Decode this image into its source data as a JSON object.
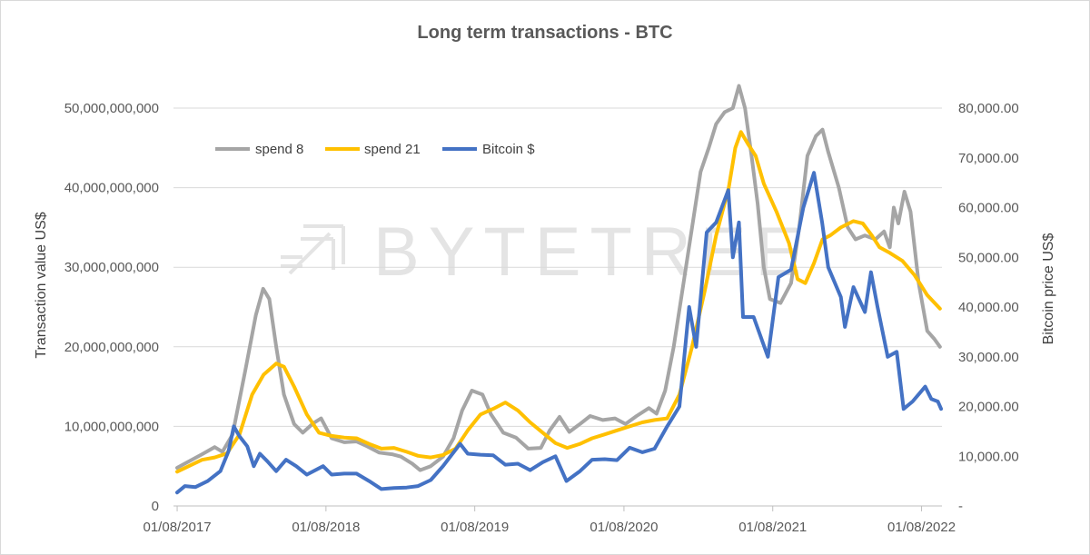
{
  "chart_data": {
    "type": "line",
    "title": "Long term transactions - BTC",
    "ylabel": "Transaction value US$",
    "y2label": "Bitcoin price US$",
    "watermark": "BYTETREE",
    "x_axis_start": "2017-07-23",
    "x_axis_end": "2022-09-20",
    "ylim": [
      0,
      50000000000
    ],
    "y2lim": [
      0,
      80000
    ],
    "x_tick_labels": [
      "01/08/2017",
      "01/08/2018",
      "01/08/2019",
      "01/08/2020",
      "01/08/2021",
      "01/08/2022"
    ],
    "x_tick_dates": [
      "2017-08-01",
      "2018-08-01",
      "2019-08-01",
      "2020-08-01",
      "2021-08-01",
      "2022-08-01"
    ],
    "y_tick_labels": [
      "0",
      "10,000,000,000",
      "20,000,000,000",
      "30,000,000,000",
      "40,000,000,000",
      "50,000,000,000"
    ],
    "y_ticks": [
      0,
      10000000000,
      20000000000,
      30000000000,
      40000000000,
      50000000000
    ],
    "y2_tick_labels": [
      "-",
      "10,000.00",
      "20,000.00",
      "30,000.00",
      "40,000.00",
      "50,000.00",
      "60,000.00",
      "70,000.00",
      "80,000.00"
    ],
    "y2_ticks": [
      0,
      10000,
      20000,
      30000,
      40000,
      50000,
      60000,
      70000,
      80000
    ],
    "grid": true,
    "legend_position": "top-left",
    "legend": [
      "spend 8",
      "spend 21",
      "Bitcoin $"
    ],
    "series": [
      {
        "name": "spend 8",
        "color": "#a5a5a5",
        "axis": "left",
        "points": [
          [
            "2017-08-01",
            4800000000
          ],
          [
            "2017-10-01",
            6500000000
          ],
          [
            "2017-11-01",
            7400000000
          ],
          [
            "2017-11-20",
            6800000000
          ],
          [
            "2017-12-15",
            9000000000
          ],
          [
            "2018-01-15",
            17000000000
          ],
          [
            "2018-02-10",
            24000000000
          ],
          [
            "2018-02-28",
            27300000000
          ],
          [
            "2018-03-15",
            26000000000
          ],
          [
            "2018-04-01",
            20000000000
          ],
          [
            "2018-04-20",
            14000000000
          ],
          [
            "2018-05-15",
            10300000000
          ],
          [
            "2018-06-05",
            9200000000
          ],
          [
            "2018-07-01",
            10400000000
          ],
          [
            "2018-07-20",
            11000000000
          ],
          [
            "2018-08-15",
            8500000000
          ],
          [
            "2018-09-15",
            8000000000
          ],
          [
            "2018-10-15",
            8100000000
          ],
          [
            "2018-11-10",
            7500000000
          ],
          [
            "2018-12-10",
            6700000000
          ],
          [
            "2019-01-10",
            6500000000
          ],
          [
            "2019-02-01",
            6200000000
          ],
          [
            "2019-03-01",
            5300000000
          ],
          [
            "2019-03-20",
            4500000000
          ],
          [
            "2019-04-15",
            5000000000
          ],
          [
            "2019-05-15",
            6200000000
          ],
          [
            "2019-06-10",
            8500000000
          ],
          [
            "2019-07-01",
            12000000000
          ],
          [
            "2019-07-25",
            14500000000
          ],
          [
            "2019-08-20",
            14000000000
          ],
          [
            "2019-09-10",
            11500000000
          ],
          [
            "2019-10-10",
            9200000000
          ],
          [
            "2019-11-10",
            8600000000
          ],
          [
            "2019-12-10",
            7200000000
          ],
          [
            "2020-01-10",
            7300000000
          ],
          [
            "2020-02-01",
            9500000000
          ],
          [
            "2020-02-25",
            11200000000
          ],
          [
            "2020-03-20",
            9300000000
          ],
          [
            "2020-04-15",
            10300000000
          ],
          [
            "2020-05-10",
            11300000000
          ],
          [
            "2020-06-10",
            10800000000
          ],
          [
            "2020-07-10",
            11000000000
          ],
          [
            "2020-08-05",
            10300000000
          ],
          [
            "2020-09-01",
            11300000000
          ],
          [
            "2020-10-01",
            12300000000
          ],
          [
            "2020-10-20",
            11600000000
          ],
          [
            "2020-11-10",
            14500000000
          ],
          [
            "2020-12-01",
            20000000000
          ],
          [
            "2020-12-25",
            28000000000
          ],
          [
            "2021-01-15",
            35000000000
          ],
          [
            "2021-02-05",
            42000000000
          ],
          [
            "2021-02-25",
            45000000000
          ],
          [
            "2021-03-15",
            48000000000
          ],
          [
            "2021-04-05",
            49500000000
          ],
          [
            "2021-04-25",
            50000000000
          ],
          [
            "2021-05-10",
            52800000000
          ],
          [
            "2021-05-25",
            50000000000
          ],
          [
            "2021-06-10",
            44000000000
          ],
          [
            "2021-06-25",
            38000000000
          ],
          [
            "2021-07-10",
            30000000000
          ],
          [
            "2021-07-25",
            26000000000
          ],
          [
            "2021-08-20",
            25500000000
          ],
          [
            "2021-09-15",
            28000000000
          ],
          [
            "2021-10-05",
            35000000000
          ],
          [
            "2021-10-25",
            44000000000
          ],
          [
            "2021-11-15",
            46500000000
          ],
          [
            "2021-12-01",
            47300000000
          ],
          [
            "2021-12-15",
            44500000000
          ],
          [
            "2022-01-10",
            40000000000
          ],
          [
            "2022-02-01",
            35000000000
          ],
          [
            "2022-02-20",
            33500000000
          ],
          [
            "2022-03-15",
            34000000000
          ],
          [
            "2022-04-10",
            33500000000
          ],
          [
            "2022-05-01",
            34500000000
          ],
          [
            "2022-05-15",
            32500000000
          ],
          [
            "2022-05-25",
            37500000000
          ],
          [
            "2022-06-05",
            35500000000
          ],
          [
            "2022-06-20",
            39500000000
          ],
          [
            "2022-07-05",
            37000000000
          ],
          [
            "2022-07-25",
            28000000000
          ],
          [
            "2022-08-15",
            22000000000
          ],
          [
            "2022-09-01",
            21000000000
          ],
          [
            "2022-09-15",
            20000000000
          ]
        ]
      },
      {
        "name": "spend 21",
        "color": "#ffc000",
        "axis": "left",
        "points": [
          [
            "2017-08-01",
            4300000000
          ],
          [
            "2017-10-01",
            5800000000
          ],
          [
            "2017-11-01",
            6100000000
          ],
          [
            "2017-12-01",
            6600000000
          ],
          [
            "2018-01-01",
            9000000000
          ],
          [
            "2018-02-01",
            14000000000
          ],
          [
            "2018-03-01",
            16500000000
          ],
          [
            "2018-04-01",
            17900000000
          ],
          [
            "2018-04-20",
            17500000000
          ],
          [
            "2018-05-15",
            15000000000
          ],
          [
            "2018-06-15",
            11500000000
          ],
          [
            "2018-07-15",
            9200000000
          ],
          [
            "2018-08-15",
            8800000000
          ],
          [
            "2018-09-15",
            8600000000
          ],
          [
            "2018-10-15",
            8500000000
          ],
          [
            "2018-11-15",
            7800000000
          ],
          [
            "2018-12-15",
            7200000000
          ],
          [
            "2019-01-15",
            7300000000
          ],
          [
            "2019-02-15",
            6800000000
          ],
          [
            "2019-03-15",
            6300000000
          ],
          [
            "2019-04-15",
            6100000000
          ],
          [
            "2019-05-15",
            6400000000
          ],
          [
            "2019-06-15",
            7200000000
          ],
          [
            "2019-07-15",
            9500000000
          ],
          [
            "2019-08-15",
            11500000000
          ],
          [
            "2019-09-15",
            12200000000
          ],
          [
            "2019-10-15",
            13000000000
          ],
          [
            "2019-11-15",
            12000000000
          ],
          [
            "2019-12-15",
            10500000000
          ],
          [
            "2020-01-15",
            9200000000
          ],
          [
            "2020-02-15",
            7900000000
          ],
          [
            "2020-03-15",
            7300000000
          ],
          [
            "2020-04-15",
            7800000000
          ],
          [
            "2020-05-15",
            8500000000
          ],
          [
            "2020-06-15",
            9000000000
          ],
          [
            "2020-07-15",
            9500000000
          ],
          [
            "2020-08-15",
            10000000000
          ],
          [
            "2020-09-15",
            10500000000
          ],
          [
            "2020-10-15",
            10800000000
          ],
          [
            "2020-11-15",
            11000000000
          ],
          [
            "2020-12-15",
            14000000000
          ],
          [
            "2021-01-15",
            20000000000
          ],
          [
            "2021-02-15",
            27000000000
          ],
          [
            "2021-03-15",
            34000000000
          ],
          [
            "2021-04-15",
            40000000000
          ],
          [
            "2021-05-01",
            45000000000
          ],
          [
            "2021-05-15",
            47000000000
          ],
          [
            "2021-06-01",
            45500000000
          ],
          [
            "2021-06-20",
            44000000000
          ],
          [
            "2021-07-10",
            40500000000
          ],
          [
            "2021-08-10",
            37000000000
          ],
          [
            "2021-09-10",
            33000000000
          ],
          [
            "2021-10-01",
            28500000000
          ],
          [
            "2021-10-20",
            28000000000
          ],
          [
            "2021-11-10",
            30500000000
          ],
          [
            "2021-12-01",
            33500000000
          ],
          [
            "2021-12-20",
            34000000000
          ],
          [
            "2022-01-15",
            35000000000
          ],
          [
            "2022-02-15",
            35800000000
          ],
          [
            "2022-03-10",
            35500000000
          ],
          [
            "2022-04-01",
            34000000000
          ],
          [
            "2022-04-20",
            32500000000
          ],
          [
            "2022-05-15",
            31800000000
          ],
          [
            "2022-06-15",
            30800000000
          ],
          [
            "2022-07-15",
            29000000000
          ],
          [
            "2022-08-15",
            26500000000
          ],
          [
            "2022-09-15",
            24800000000
          ]
        ]
      },
      {
        "name": "Bitcoin $",
        "color": "#4472c4",
        "axis": "right",
        "points": [
          [
            "2017-08-01",
            2700
          ],
          [
            "2017-08-20",
            4000
          ],
          [
            "2017-09-15",
            3800
          ],
          [
            "2017-10-15",
            5000
          ],
          [
            "2017-11-15",
            7000
          ],
          [
            "2017-12-05",
            11000
          ],
          [
            "2017-12-18",
            16000
          ],
          [
            "2018-01-01",
            14000
          ],
          [
            "2018-01-20",
            12000
          ],
          [
            "2018-02-05",
            8000
          ],
          [
            "2018-02-20",
            10500
          ],
          [
            "2018-03-10",
            9000
          ],
          [
            "2018-04-01",
            7000
          ],
          [
            "2018-04-25",
            9300
          ],
          [
            "2018-05-20",
            8000
          ],
          [
            "2018-06-15",
            6300
          ],
          [
            "2018-07-25",
            8000
          ],
          [
            "2018-08-15",
            6300
          ],
          [
            "2018-09-15",
            6500
          ],
          [
            "2018-10-15",
            6500
          ],
          [
            "2018-11-15",
            5000
          ],
          [
            "2018-12-15",
            3400
          ],
          [
            "2019-01-15",
            3600
          ],
          [
            "2019-02-15",
            3700
          ],
          [
            "2019-03-15",
            4000
          ],
          [
            "2019-04-15",
            5200
          ],
          [
            "2019-05-15",
            8000
          ],
          [
            "2019-06-26",
            12500
          ],
          [
            "2019-07-15",
            10500
          ],
          [
            "2019-08-15",
            10300
          ],
          [
            "2019-09-15",
            10200
          ],
          [
            "2019-10-15",
            8300
          ],
          [
            "2019-11-15",
            8500
          ],
          [
            "2019-12-15",
            7200
          ],
          [
            "2020-01-15",
            8800
          ],
          [
            "2020-02-15",
            10000
          ],
          [
            "2020-03-13",
            5000
          ],
          [
            "2020-04-15",
            7000
          ],
          [
            "2020-05-15",
            9300
          ],
          [
            "2020-06-15",
            9400
          ],
          [
            "2020-07-15",
            9200
          ],
          [
            "2020-08-15",
            11700
          ],
          [
            "2020-09-15",
            10800
          ],
          [
            "2020-10-15",
            11500
          ],
          [
            "2020-11-15",
            16000
          ],
          [
            "2020-12-15",
            20000
          ],
          [
            "2021-01-08",
            40000
          ],
          [
            "2021-01-25",
            32000
          ],
          [
            "2021-02-20",
            55000
          ],
          [
            "2021-03-15",
            57000
          ],
          [
            "2021-04-14",
            63500
          ],
          [
            "2021-04-25",
            50000
          ],
          [
            "2021-05-10",
            57000
          ],
          [
            "2021-05-20",
            38000
          ],
          [
            "2021-06-15",
            38000
          ],
          [
            "2021-07-20",
            30000
          ],
          [
            "2021-08-15",
            46000
          ],
          [
            "2021-09-15",
            47500
          ],
          [
            "2021-10-15",
            60000
          ],
          [
            "2021-11-10",
            67000
          ],
          [
            "2021-11-30",
            57000
          ],
          [
            "2021-12-15",
            48000
          ],
          [
            "2022-01-15",
            42000
          ],
          [
            "2022-01-25",
            36000
          ],
          [
            "2022-02-15",
            44000
          ],
          [
            "2022-03-15",
            39000
          ],
          [
            "2022-03-30",
            47000
          ],
          [
            "2022-04-15",
            40000
          ],
          [
            "2022-05-10",
            30000
          ],
          [
            "2022-06-01",
            31000
          ],
          [
            "2022-06-18",
            19500
          ],
          [
            "2022-07-10",
            21000
          ],
          [
            "2022-08-10",
            24000
          ],
          [
            "2022-08-25",
            21500
          ],
          [
            "2022-09-10",
            21000
          ],
          [
            "2022-09-18",
            19500
          ]
        ]
      }
    ]
  }
}
